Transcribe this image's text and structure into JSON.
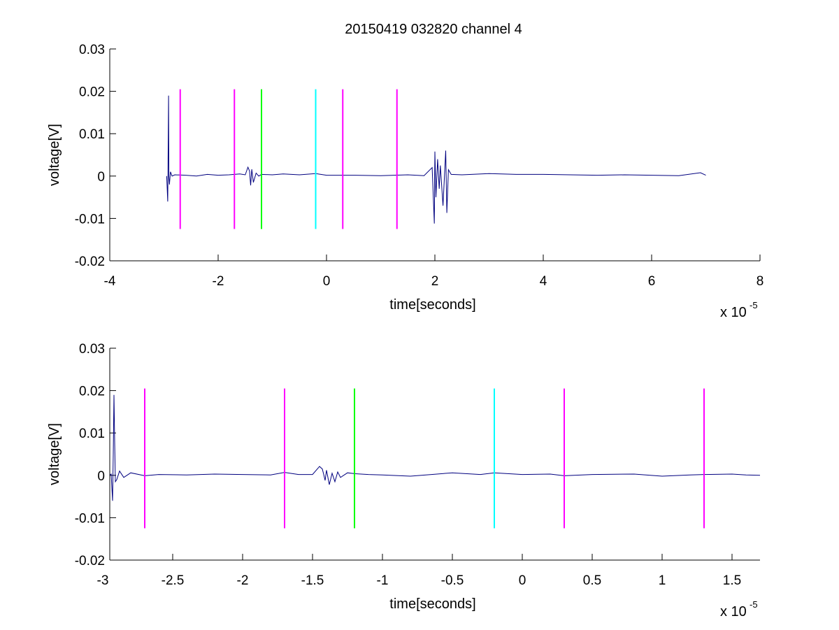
{
  "figure_title": "20150419 032820 channel 4",
  "chart_data": [
    {
      "type": "line",
      "title": "20150419 032820 channel 4",
      "xlabel": "time[seconds]",
      "ylabel": "voltage[V]",
      "x_exponent_base": "x 10",
      "x_exponent_power": "-5",
      "x_scale_factor": 1e-05,
      "xlim": [
        -4,
        8
      ],
      "ylim": [
        -0.02,
        0.03
      ],
      "xticks": [
        -4,
        -2,
        0,
        2,
        4,
        6,
        8
      ],
      "xtick_labels": [
        "-4",
        "-2",
        "0",
        "2",
        "4",
        "6",
        "8"
      ],
      "yticks": [
        -0.02,
        -0.01,
        0,
        0.01,
        0.02,
        0.03
      ],
      "ytick_labels": [
        "-0.02",
        "-0.01",
        "0",
        "0.01",
        "0.02",
        "0.03"
      ],
      "grid": false,
      "series": [
        {
          "color": "#00007f",
          "x": [
            -2.95,
            -2.93,
            -2.92,
            -2.915,
            -2.91,
            -2.9,
            -2.88,
            -2.85,
            -2.8,
            -2.6,
            -2.4,
            -2.2,
            -2.0,
            -1.8,
            -1.6,
            -1.5,
            -1.45,
            -1.42,
            -1.4,
            -1.38,
            -1.35,
            -1.3,
            -1.25,
            -1.2,
            -1.0,
            -0.8,
            -0.5,
            -0.2,
            0.0,
            0.5,
            1.0,
            1.5,
            1.8,
            1.95,
            1.99,
            2.0,
            2.02,
            2.05,
            2.08,
            2.1,
            2.15,
            2.2,
            2.22,
            2.25,
            2.3,
            2.5,
            3.0,
            3.5,
            4.0,
            4.5,
            5.0,
            5.5,
            6.0,
            6.5,
            6.9,
            7.0
          ],
          "y": [
            0.0,
            -0.006,
            0.01,
            0.019,
            0.0,
            -0.002,
            0.001,
            0.0,
            0.0003,
            0.0002,
            0.0,
            0.0004,
            0.0002,
            0.0003,
            0.0005,
            0.0003,
            0.0021,
            0.0012,
            -0.0022,
            0.0016,
            -0.0015,
            0.0007,
            0.0,
            0.0004,
            0.0003,
            0.0005,
            0.0003,
            0.0006,
            0.0002,
            0.0002,
            0.0001,
            0.0003,
            0.0001,
            0.002,
            -0.0112,
            0.0058,
            -0.005,
            0.004,
            -0.003,
            0.0025,
            -0.007,
            0.006,
            -0.0087,
            0.0015,
            0.0004,
            0.0003,
            0.0006,
            0.0004,
            0.0004,
            0.0003,
            0.0002,
            0.0003,
            0.0002,
            0.0001,
            0.0008,
            0.0002
          ]
        }
      ],
      "markers": [
        {
          "x": -2.7,
          "y0": -0.0125,
          "y1": 0.0205,
          "color": "#ff00ff"
        },
        {
          "x": -1.7,
          "y0": -0.0125,
          "y1": 0.0205,
          "color": "#ff00ff"
        },
        {
          "x": -1.2,
          "y0": -0.0125,
          "y1": 0.0205,
          "color": "#00ff00"
        },
        {
          "x": -0.2,
          "y0": -0.0125,
          "y1": 0.0205,
          "color": "#00ffff"
        },
        {
          "x": 0.3,
          "y0": -0.0125,
          "y1": 0.0205,
          "color": "#ff00ff"
        },
        {
          "x": 1.3,
          "y0": -0.0125,
          "y1": 0.0205,
          "color": "#ff00ff"
        }
      ]
    },
    {
      "type": "line",
      "title": "",
      "xlabel": "time[seconds]",
      "ylabel": "voltage[V]",
      "x_exponent_base": "x 10",
      "x_exponent_power": "-5",
      "x_scale_factor": 1e-05,
      "xlim": [
        -2.95,
        1.7
      ],
      "ylim": [
        -0.02,
        0.03
      ],
      "xticks": [
        -3,
        -2.5,
        -2,
        -1.5,
        -1,
        -0.5,
        0,
        0.5,
        1,
        1.5
      ],
      "xtick_labels": [
        "-3",
        "-2.5",
        "-2",
        "-1.5",
        "-1",
        "-0.5",
        "0",
        "0.5",
        "1",
        "1.5"
      ],
      "yticks": [
        -0.02,
        -0.01,
        0,
        0.01,
        0.02,
        0.03
      ],
      "ytick_labels": [
        "-0.02",
        "-0.01",
        "0",
        "0.01",
        "0.02",
        "0.03"
      ],
      "grid": false,
      "series": [
        {
          "color": "#00007f",
          "x": [
            -2.95,
            -2.94,
            -2.93,
            -2.925,
            -2.92,
            -2.915,
            -2.91,
            -2.9,
            -2.88,
            -2.85,
            -2.8,
            -2.7,
            -2.6,
            -2.4,
            -2.2,
            -2.0,
            -1.8,
            -1.7,
            -1.6,
            -1.5,
            -1.45,
            -1.43,
            -1.42,
            -1.41,
            -1.4,
            -1.38,
            -1.36,
            -1.34,
            -1.32,
            -1.3,
            -1.25,
            -1.2,
            -1.1,
            -1.0,
            -0.8,
            -0.5,
            -0.3,
            -0.2,
            0.0,
            0.2,
            0.3,
            0.5,
            0.8,
            1.0,
            1.2,
            1.3,
            1.5,
            1.6,
            1.7
          ],
          "y": [
            0.0,
            0.0003,
            -0.006,
            0.005,
            0.019,
            0.008,
            -0.0015,
            -0.001,
            0.001,
            -0.0005,
            0.0006,
            -0.0001,
            0.0002,
            0.0001,
            0.0003,
            0.0002,
            0.0001,
            0.0007,
            0.0002,
            0.0002,
            0.0021,
            0.0015,
            0.0002,
            -0.0012,
            0.0012,
            -0.0022,
            0.0005,
            -0.0015,
            0.0008,
            -0.0005,
            0.0006,
            0.0004,
            0.0002,
            0.0001,
            -0.0002,
            0.0006,
            0.0002,
            0.0006,
            0.0002,
            0.0003,
            -0.0001,
            0.0002,
            0.0003,
            -0.0002,
            0.0001,
            0.0002,
            0.0003,
            0.0001,
            0.0
          ]
        }
      ],
      "markers": [
        {
          "x": -2.7,
          "y0": -0.0125,
          "y1": 0.0205,
          "color": "#ff00ff"
        },
        {
          "x": -1.7,
          "y0": -0.0125,
          "y1": 0.0205,
          "color": "#ff00ff"
        },
        {
          "x": -1.2,
          "y0": -0.0125,
          "y1": 0.0205,
          "color": "#00ff00"
        },
        {
          "x": -0.2,
          "y0": -0.0125,
          "y1": 0.0205,
          "color": "#00ffff"
        },
        {
          "x": 0.3,
          "y0": -0.0125,
          "y1": 0.0205,
          "color": "#ff00ff"
        },
        {
          "x": 1.3,
          "y0": -0.0125,
          "y1": 0.0205,
          "color": "#ff00ff"
        }
      ]
    }
  ]
}
